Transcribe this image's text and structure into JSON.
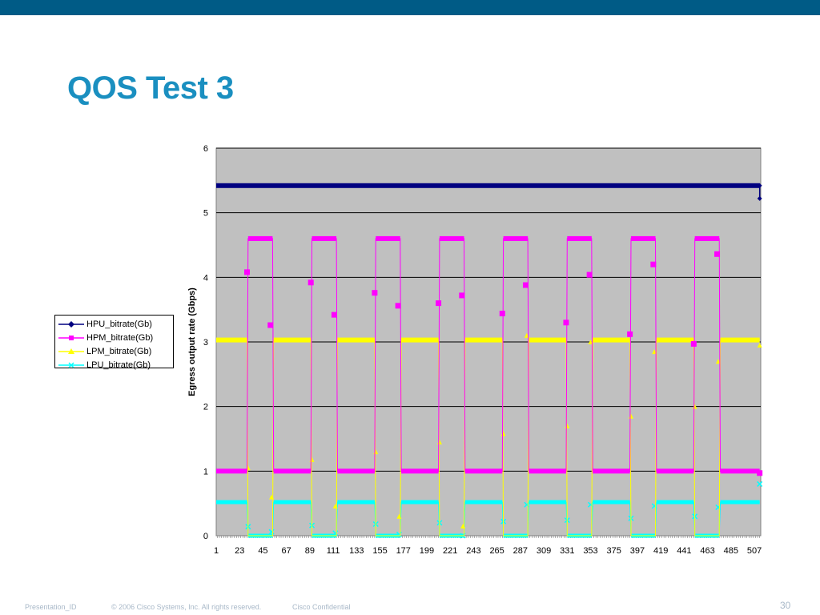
{
  "slide": {
    "title": "QOS Test 3",
    "page_number": "30",
    "footer": {
      "presentation_id": "Presentation_ID",
      "copyright": "© 2006 Cisco Systems, Inc. All rights reserved.",
      "confidential": "Cisco Confidential"
    }
  },
  "colors": {
    "header_bar": "#005b86",
    "title": "#1a8fc0",
    "plot_bg": "#c0c0c0",
    "HPU": "#000080",
    "HPM": "#ff00ff",
    "LPM": "#ffff00",
    "LPU": "#00ffff"
  },
  "chart_data": {
    "type": "line",
    "title": "",
    "xlabel": "",
    "ylabel": "Egress output rate (Gbps)",
    "ylim": [
      0,
      6
    ],
    "yticks": [
      0,
      1,
      2,
      3,
      4,
      5,
      6
    ],
    "xlim": [
      1,
      513
    ],
    "xticks": [
      1,
      23,
      45,
      67,
      89,
      111,
      133,
      155,
      177,
      199,
      221,
      243,
      265,
      287,
      309,
      331,
      353,
      375,
      397,
      419,
      441,
      463,
      485,
      507
    ],
    "grid": "horizontal",
    "legend_position": "left",
    "period_start": 1,
    "period_length": 60,
    "cycles": 9,
    "segments": {
      "HPU_bitrate(Gb)": [
        [
          1,
          512,
          5.42
        ],
        [
          512,
          512,
          5.22
        ]
      ],
      "HPM_bitrate(Gb)": {
        "low": 1.0,
        "high": 4.6,
        "low_first_end": 30,
        "high_spans": [
          [
            30,
            55
          ],
          [
            90,
            115
          ],
          [
            150,
            175
          ],
          [
            210,
            235
          ],
          [
            270,
            295
          ],
          [
            330,
            355
          ],
          [
            390,
            415
          ],
          [
            450,
            475
          ]
        ],
        "transitions": [
          [
            30,
            4.08
          ],
          [
            52,
            3.26
          ],
          [
            90,
            3.92
          ],
          [
            112,
            3.42
          ],
          [
            150,
            3.76
          ],
          [
            172,
            3.56
          ],
          [
            210,
            3.6
          ],
          [
            232,
            3.72
          ],
          [
            270,
            3.44
          ],
          [
            292,
            3.88
          ],
          [
            330,
            3.3
          ],
          [
            352,
            4.04
          ],
          [
            390,
            3.12
          ],
          [
            412,
            4.2
          ],
          [
            450,
            2.97
          ],
          [
            472,
            4.36
          ],
          [
            512,
            0.97
          ]
        ]
      },
      "LPM_bitrate(Gb)": {
        "high": 3.03,
        "low": 0.0,
        "low_spans": [
          [
            30,
            55
          ],
          [
            90,
            115
          ],
          [
            150,
            175
          ],
          [
            210,
            235
          ],
          [
            270,
            295
          ],
          [
            330,
            355
          ],
          [
            390,
            415
          ],
          [
            450,
            475
          ]
        ],
        "transitions": [
          [
            31,
            1.05
          ],
          [
            53,
            0.6
          ],
          [
            91,
            1.18
          ],
          [
            113,
            0.46
          ],
          [
            151,
            1.3
          ],
          [
            173,
            0.3
          ],
          [
            211,
            1.45
          ],
          [
            233,
            0.15
          ],
          [
            271,
            1.58
          ],
          [
            293,
            3.1
          ],
          [
            331,
            1.7
          ],
          [
            353,
            3.0
          ],
          [
            391,
            1.85
          ],
          [
            413,
            2.85
          ],
          [
            451,
            2.0
          ],
          [
            473,
            2.7
          ],
          [
            512,
            2.95
          ]
        ]
      },
      "LPU_bitrate(Gb)": {
        "high": 0.52,
        "low": 0.0,
        "low_spans": [
          [
            30,
            55
          ],
          [
            90,
            115
          ],
          [
            150,
            175
          ],
          [
            210,
            235
          ],
          [
            270,
            295
          ],
          [
            330,
            355
          ],
          [
            390,
            415
          ],
          [
            450,
            475
          ]
        ],
        "transitions": [
          [
            31,
            0.14
          ],
          [
            53,
            0.06
          ],
          [
            91,
            0.16
          ],
          [
            113,
            0.04
          ],
          [
            151,
            0.18
          ],
          [
            173,
            0.02
          ],
          [
            211,
            0.2
          ],
          [
            233,
            0.0
          ],
          [
            271,
            0.22
          ],
          [
            293,
            0.48
          ],
          [
            331,
            0.24
          ],
          [
            353,
            0.48
          ],
          [
            391,
            0.27
          ],
          [
            413,
            0.46
          ],
          [
            451,
            0.3
          ],
          [
            473,
            0.44
          ],
          [
            512,
            0.8
          ]
        ]
      }
    },
    "series": [
      {
        "name": "HPU_bitrate(Gb)",
        "color": "#000080",
        "marker": "diamond"
      },
      {
        "name": "HPM_bitrate(Gb)",
        "color": "#ff00ff",
        "marker": "square"
      },
      {
        "name": "LPM_bitrate(Gb)",
        "color": "#ffff00",
        "marker": "triangle"
      },
      {
        "name": "LPU_bitrate(Gb)",
        "color": "#00ffff",
        "marker": "x"
      }
    ]
  }
}
